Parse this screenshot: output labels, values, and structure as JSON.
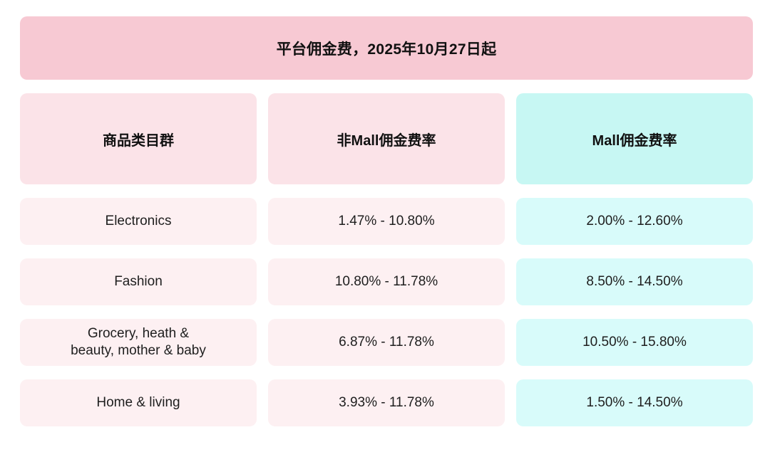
{
  "chart_data": {
    "type": "table",
    "title": "平台佣金费，2025年10月27日起",
    "columns": [
      "商品类目群",
      "非Mall佣金费率",
      "Mall佣金费率"
    ],
    "rows": [
      [
        "Electronics",
        "1.47% - 10.80%",
        "2.00% - 12.60%"
      ],
      [
        "Fashion",
        "10.80% - 11.78%",
        "8.50% - 14.50%"
      ],
      [
        "Grocery, heath &\nbeauty, mother & baby",
        "6.87% - 11.78%",
        "10.50% - 15.80%"
      ],
      [
        "Home & living",
        "3.93% - 11.78%",
        "1.50% - 14.50%"
      ]
    ],
    "layout": {
      "legend": "none",
      "grid": "off",
      "header_themes": [
        "pink",
        "pink",
        "cyan"
      ]
    }
  },
  "colors": {
    "banner_bg": "#f7c9d3",
    "header_pink_bg": "#fbe3e8",
    "header_cyan_bg": "#c7f7f3",
    "row_pink_bg": "#fdf0f2",
    "row_cyan_bg": "#d8fbfa",
    "text": "#111111"
  }
}
